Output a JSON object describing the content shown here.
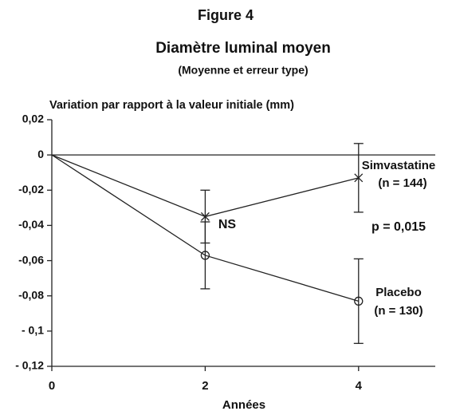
{
  "chart_data": {
    "type": "line",
    "title": "Figure 4",
    "subtitle": "Diamètre luminal moyen",
    "subtitle2": "(Moyenne et erreur type)",
    "y_label": "Variation par rapport à la valeur initiale (mm)",
    "x_label": "Années",
    "x": [
      0,
      2,
      4
    ],
    "series": [
      {
        "name": "Simvastatine",
        "note": "(n = 144)",
        "marker": "x",
        "color": "#000000",
        "values": [
          0,
          -0.035,
          -0.013
        ],
        "errors": [
          null,
          0.015,
          0.0195
        ]
      },
      {
        "name": "Placebo",
        "note": "(n = 130)",
        "marker": "circle",
        "color": "#000000",
        "values": [
          0,
          -0.057,
          -0.083
        ],
        "errors": [
          null,
          0.019,
          0.024
        ]
      }
    ],
    "annotations": [
      "NS",
      "p = 0,015"
    ],
    "xlim": [
      0,
      5
    ],
    "xticks": [
      0,
      2,
      4
    ],
    "ylim": [
      -0.12,
      0.02
    ],
    "yticks": [
      {
        "value": 0.02,
        "label": "0,02"
      },
      0,
      {
        "value": -0.02,
        "label": "-0,02"
      },
      {
        "value": -0.04,
        "label": "-0,04"
      },
      {
        "value": -0.06,
        "label": "-0,06"
      },
      {
        "value": -0.08,
        "label": "-0,08"
      },
      {
        "value": -0.1,
        "label": "- 0,1"
      },
      {
        "value": -0.12,
        "label": "- 0,12"
      }
    ],
    "grid": false
  }
}
